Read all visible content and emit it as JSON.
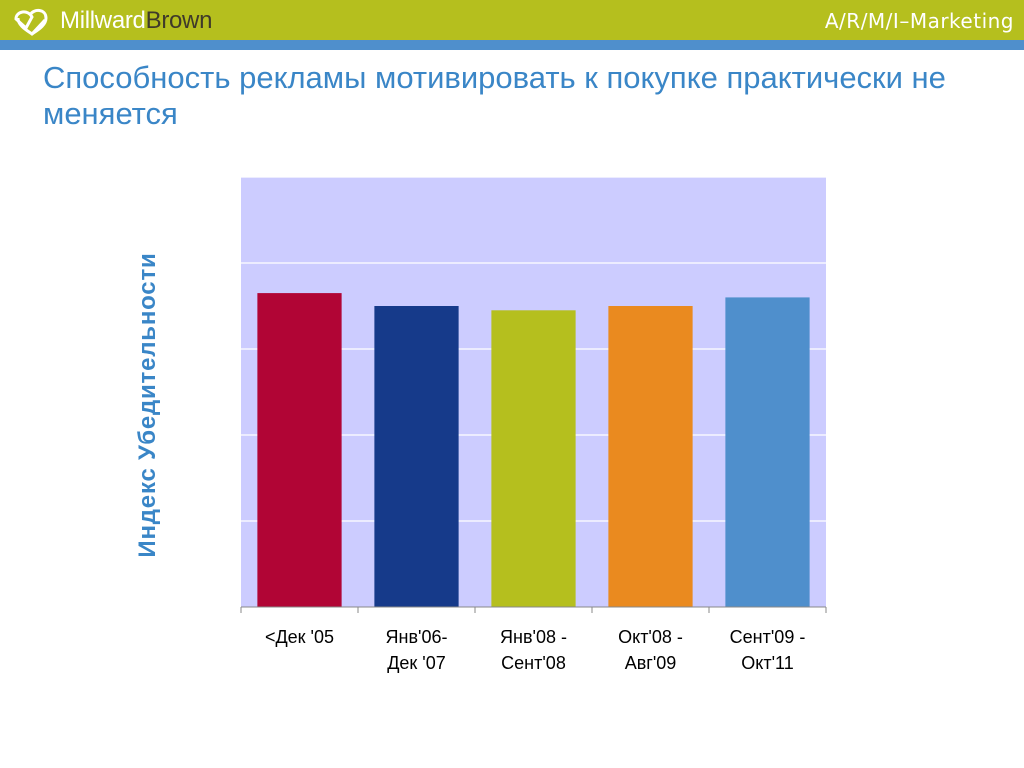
{
  "header": {
    "brand_part1": "Millward",
    "brand_part2": "Brown",
    "tagline": "A/R/M/I–Marketing",
    "bar_color": "#b5bf1e",
    "stripe_color": "#4f8fcc",
    "logo_icon": "millward-brown-logo-icon"
  },
  "slide": {
    "title": "Способность рекламы мотивировать к покупке практически не меняется"
  },
  "chart_data": {
    "type": "bar",
    "title": "",
    "ylabel": "Индекс Убедительности",
    "xlabel": "",
    "ylim": [
      0,
      100
    ],
    "grid": true,
    "legend": "none",
    "plot_background": "#ccccff",
    "categories": [
      [
        "<Дек '05"
      ],
      [
        "Янв'06-",
        "Дек '07"
      ],
      [
        "Янв'08 -",
        "Сент'08"
      ],
      [
        "Окт'08 -",
        "Авг'09"
      ],
      [
        "Сент'09 -",
        "Окт'11"
      ]
    ],
    "values": [
      73,
      70,
      69,
      70,
      72
    ],
    "colors": [
      "#b10535",
      "#163a8a",
      "#b5bf1e",
      "#ea8a1f",
      "#4f8fcc"
    ]
  }
}
